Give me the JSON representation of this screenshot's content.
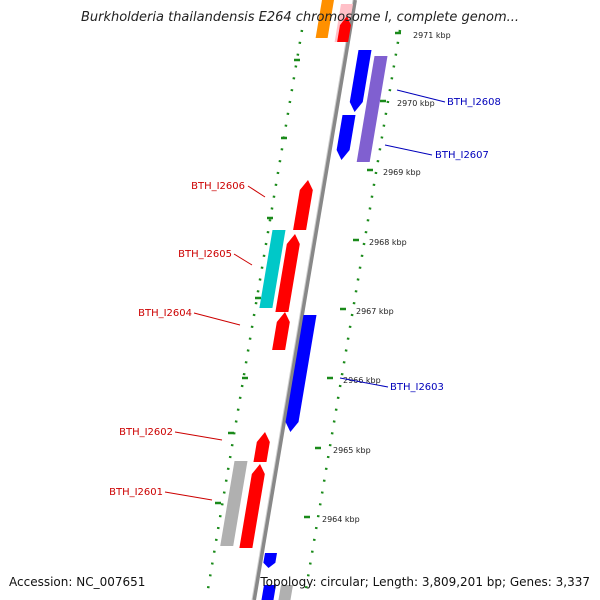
{
  "title": "Burkholderia thailandensis E264 chromosome I, complete genom...",
  "footer": {
    "accession": "Accession: NC_007651",
    "topology": "Topology: circular; Length: 3,809,201 bp; Genes: 3,337"
  },
  "colors": {
    "forward_strand_red": "#ff0000",
    "reverse_strand_blue": "#0000ff",
    "cyan": "#00c8c8",
    "grey": "#b0b0b0",
    "lavender": "#8060d0",
    "orange": "#ff9000",
    "pink": "#ffc0c8",
    "tick_green": "#1a8a1a",
    "backbone": "#888888"
  },
  "ticks": [
    {
      "label": "2971 kbp"
    },
    {
      "label": "2970 kbp"
    },
    {
      "label": "2969 kbp"
    },
    {
      "label": "2968 kbp"
    },
    {
      "label": "2967 kbp"
    },
    {
      "label": "2966 kbp"
    },
    {
      "label": "2965 kbp"
    },
    {
      "label": "2964 kbp"
    }
  ],
  "genes": [
    {
      "name": "BTH_I2608",
      "strand": "reverse",
      "color": "blue"
    },
    {
      "name": "BTH_I2607",
      "strand": "reverse",
      "color": "blue"
    },
    {
      "name": "BTH_I2606",
      "strand": "forward",
      "color": "red"
    },
    {
      "name": "BTH_I2605",
      "strand": "forward",
      "color": "red"
    },
    {
      "name": "BTH_I2604",
      "strand": "forward",
      "color": "red"
    },
    {
      "name": "BTH_I2603",
      "strand": "reverse",
      "color": "blue"
    },
    {
      "name": "BTH_I2602",
      "strand": "forward",
      "color": "red"
    },
    {
      "name": "BTH_I2601",
      "strand": "forward",
      "color": "red"
    }
  ]
}
